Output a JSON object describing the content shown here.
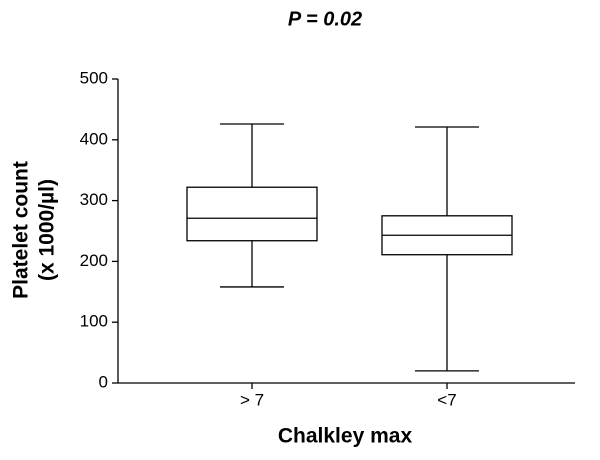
{
  "chart_data": {
    "type": "box",
    "title": "P = 0.02",
    "x_label": "Chalkley max",
    "y_label": [
      "Platelet count",
      "(x 1000/µl)"
    ],
    "categories": [
      "> 7",
      "<7"
    ],
    "boxes": [
      {
        "min": 158,
        "q1": 234,
        "median": 271,
        "q3": 322,
        "max": 426
      },
      {
        "min": 20,
        "q1": 211,
        "median": 243,
        "q3": 275,
        "max": 421
      }
    ],
    "color": "#000000",
    "ylim": [
      0,
      500
    ],
    "yticks": [
      0,
      100,
      200,
      300,
      400,
      500
    ]
  }
}
